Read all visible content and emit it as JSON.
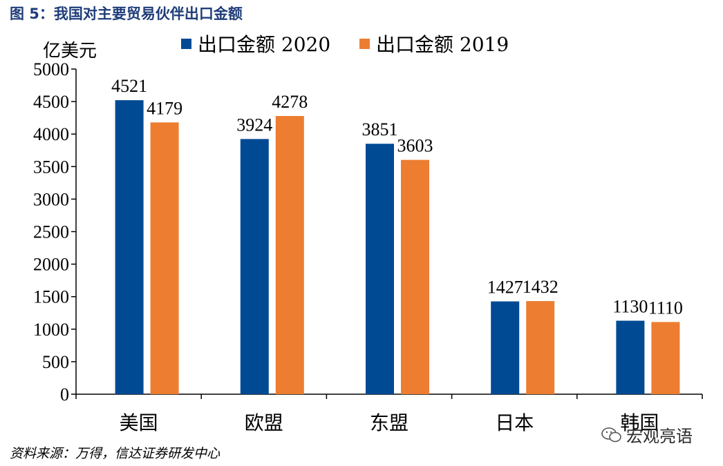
{
  "figure": {
    "title": "图 5：我国对主要贸易伙伴出口金额",
    "source": "资料来源：万得，信达证券研发中心",
    "watermark_text": "宏观亮语",
    "watermark_icon": "wechat-icon"
  },
  "chart_data": {
    "type": "bar",
    "unit_label": "亿美元",
    "categories": [
      "美国",
      "欧盟",
      "东盟",
      "日本",
      "韩国"
    ],
    "series": [
      {
        "name": "出口金额 2020",
        "values": [
          4521,
          3924,
          3851,
          1427,
          1130
        ],
        "color": "#004a94"
      },
      {
        "name": "出口金额 2019",
        "values": [
          4179,
          4278,
          3603,
          1432,
          1110
        ],
        "color": "#ed7d31"
      }
    ],
    "ylim": [
      0,
      5000
    ],
    "yticks": [
      0,
      500,
      1000,
      1500,
      2000,
      2500,
      3000,
      3500,
      4000,
      4500,
      5000
    ],
    "data_labels": true,
    "legend_position": "top",
    "grid": false
  }
}
